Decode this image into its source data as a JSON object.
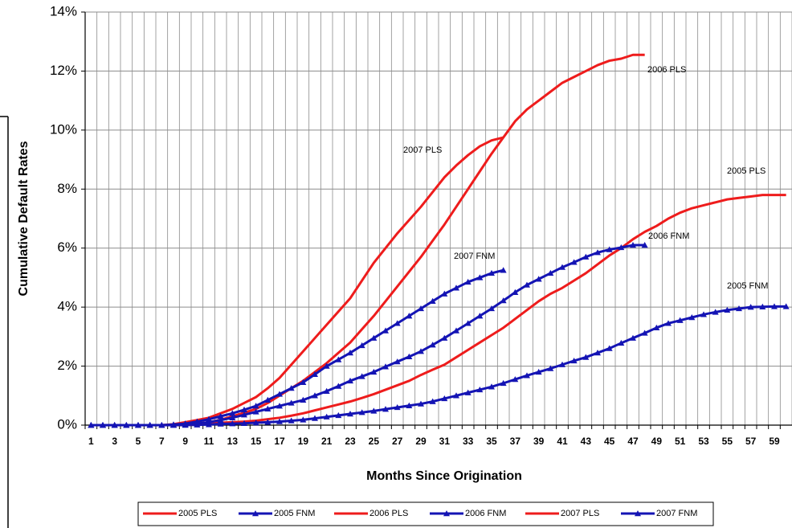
{
  "chart_data": {
    "type": "line",
    "x_label": "Months Since Origination",
    "y_label": "Cumulative Default Rates",
    "categories": [
      1,
      null,
      3,
      null,
      5,
      null,
      7,
      null,
      9,
      null,
      11,
      null,
      13,
      null,
      15,
      null,
      17,
      null,
      19,
      null,
      21,
      null,
      23,
      null,
      25,
      null,
      27,
      null,
      29,
      null,
      31,
      null,
      33,
      null,
      35,
      null,
      37,
      null,
      39,
      null,
      41,
      null,
      43,
      null,
      45,
      null,
      47,
      null,
      49,
      null,
      51,
      null,
      53,
      null,
      55,
      null,
      57,
      null,
      59,
      null
    ],
    "ylim": [
      0,
      14
    ],
    "yticks": [
      {
        "value": 0,
        "label": "0%"
      },
      {
        "value": 2,
        "label": "2%"
      },
      {
        "value": 4,
        "label": "4%"
      },
      {
        "value": 6,
        "label": "6%"
      },
      {
        "value": 8,
        "label": "8%"
      },
      {
        "value": 10,
        "label": "10%"
      },
      {
        "value": 12,
        "label": "12%"
      },
      {
        "value": 14,
        "label": "14%"
      }
    ],
    "grid": true,
    "legend": "bottom",
    "series": [
      {
        "name": "2005 PLS",
        "color": "#ee1c1c",
        "marker": "none",
        "annotation": "2005 PLS",
        "values": [
          0,
          0,
          0,
          0,
          0,
          0,
          0,
          0,
          0.01,
          0.03,
          0.05,
          0.08,
          0.1,
          0.12,
          0.15,
          0.2,
          0.25,
          0.32,
          0.4,
          0.5,
          0.6,
          0.7,
          0.8,
          0.92,
          1.05,
          1.2,
          1.35,
          1.5,
          1.7,
          1.88,
          2.05,
          2.3,
          2.55,
          2.8,
          3.05,
          3.3,
          3.6,
          3.9,
          4.2,
          4.45,
          4.65,
          4.9,
          5.15,
          5.45,
          5.75,
          6.0,
          6.3,
          6.55,
          6.75,
          7.0,
          7.2,
          7.35,
          7.45,
          7.55,
          7.65,
          7.7,
          7.75,
          7.8,
          7.8,
          7.8
        ]
      },
      {
        "name": "2005 FNM",
        "color": "#1414b4",
        "marker": "triangle",
        "annotation": "2005 FNM",
        "values": [
          0,
          0,
          0,
          0,
          0,
          0,
          0,
          0,
          0,
          0.01,
          0.02,
          0.04,
          0.05,
          0.06,
          0.08,
          0.1,
          0.12,
          0.15,
          0.18,
          0.23,
          0.28,
          0.33,
          0.38,
          0.43,
          0.48,
          0.54,
          0.6,
          0.66,
          0.72,
          0.8,
          0.9,
          1.0,
          1.1,
          1.2,
          1.3,
          1.42,
          1.55,
          1.68,
          1.8,
          1.92,
          2.05,
          2.18,
          2.3,
          2.45,
          2.6,
          2.78,
          2.95,
          3.12,
          3.3,
          3.45,
          3.55,
          3.65,
          3.75,
          3.83,
          3.9,
          3.95,
          4.0,
          4.01,
          4.02,
          4.02
        ]
      },
      {
        "name": "2006 PLS",
        "color": "#ee1c1c",
        "marker": "none",
        "annotation": "2006 PLS",
        "values": [
          0,
          0,
          0,
          0,
          0,
          0,
          0,
          0,
          0.02,
          0.05,
          0.1,
          0.18,
          0.3,
          0.42,
          0.55,
          0.75,
          1.0,
          1.25,
          1.5,
          1.8,
          2.1,
          2.45,
          2.8,
          3.25,
          3.7,
          4.2,
          4.7,
          5.2,
          5.7,
          6.25,
          6.8,
          7.4,
          8.0,
          8.6,
          9.2,
          9.75,
          10.3,
          10.7,
          11.0,
          11.3,
          11.6,
          11.8,
          12.0,
          12.2,
          12.35,
          12.42,
          12.55,
          12.55,
          null,
          null,
          null,
          null,
          null,
          null,
          null,
          null,
          null,
          null,
          null,
          null
        ]
      },
      {
        "name": "2006 FNM",
        "color": "#1414b4",
        "marker": "triangle",
        "annotation": "2006 FNM",
        "values": [
          0,
          0,
          0,
          0,
          0,
          0,
          0,
          0,
          0.02,
          0.05,
          0.1,
          0.17,
          0.25,
          0.35,
          0.45,
          0.55,
          0.65,
          0.75,
          0.85,
          1.0,
          1.15,
          1.32,
          1.5,
          1.65,
          1.8,
          1.98,
          2.15,
          2.32,
          2.5,
          2.72,
          2.95,
          3.2,
          3.45,
          3.7,
          3.95,
          4.22,
          4.5,
          4.75,
          4.95,
          5.15,
          5.35,
          5.52,
          5.7,
          5.85,
          5.95,
          6.02,
          6.1,
          6.1,
          null,
          null,
          null,
          null,
          null,
          null,
          null,
          null,
          null,
          null,
          null,
          null
        ]
      },
      {
        "name": "2007 PLS",
        "color": "#ee1c1c",
        "marker": "none",
        "annotation": "2007 PLS",
        "values": [
          0,
          0,
          0,
          0,
          0,
          0,
          0,
          0.03,
          0.1,
          0.17,
          0.25,
          0.4,
          0.55,
          0.75,
          0.95,
          1.25,
          1.6,
          2.05,
          2.5,
          2.95,
          3.4,
          3.85,
          4.3,
          4.9,
          5.5,
          6.0,
          6.5,
          6.95,
          7.4,
          7.9,
          8.4,
          8.8,
          9.15,
          9.45,
          9.65,
          9.75,
          null,
          null,
          null,
          null,
          null,
          null,
          null,
          null,
          null,
          null,
          null,
          null,
          null,
          null,
          null,
          null,
          null,
          null,
          null,
          null,
          null,
          null,
          null,
          null
        ]
      },
      {
        "name": "2007 FNM",
        "color": "#1414b4",
        "marker": "triangle",
        "annotation": "2007 FNM",
        "values": [
          0,
          0,
          0,
          0,
          0,
          0,
          0,
          0.02,
          0.05,
          0.12,
          0.2,
          0.3,
          0.4,
          0.52,
          0.65,
          0.85,
          1.05,
          1.25,
          1.45,
          1.72,
          2.0,
          2.22,
          2.45,
          2.7,
          2.95,
          3.2,
          3.45,
          3.7,
          3.95,
          4.2,
          4.45,
          4.65,
          4.85,
          5.0,
          5.15,
          5.25,
          null,
          null,
          null,
          null,
          null,
          null,
          null,
          null,
          null,
          null,
          null,
          null,
          null,
          null,
          null,
          null,
          null,
          null,
          null,
          null,
          null,
          null,
          null,
          null
        ]
      }
    ]
  }
}
